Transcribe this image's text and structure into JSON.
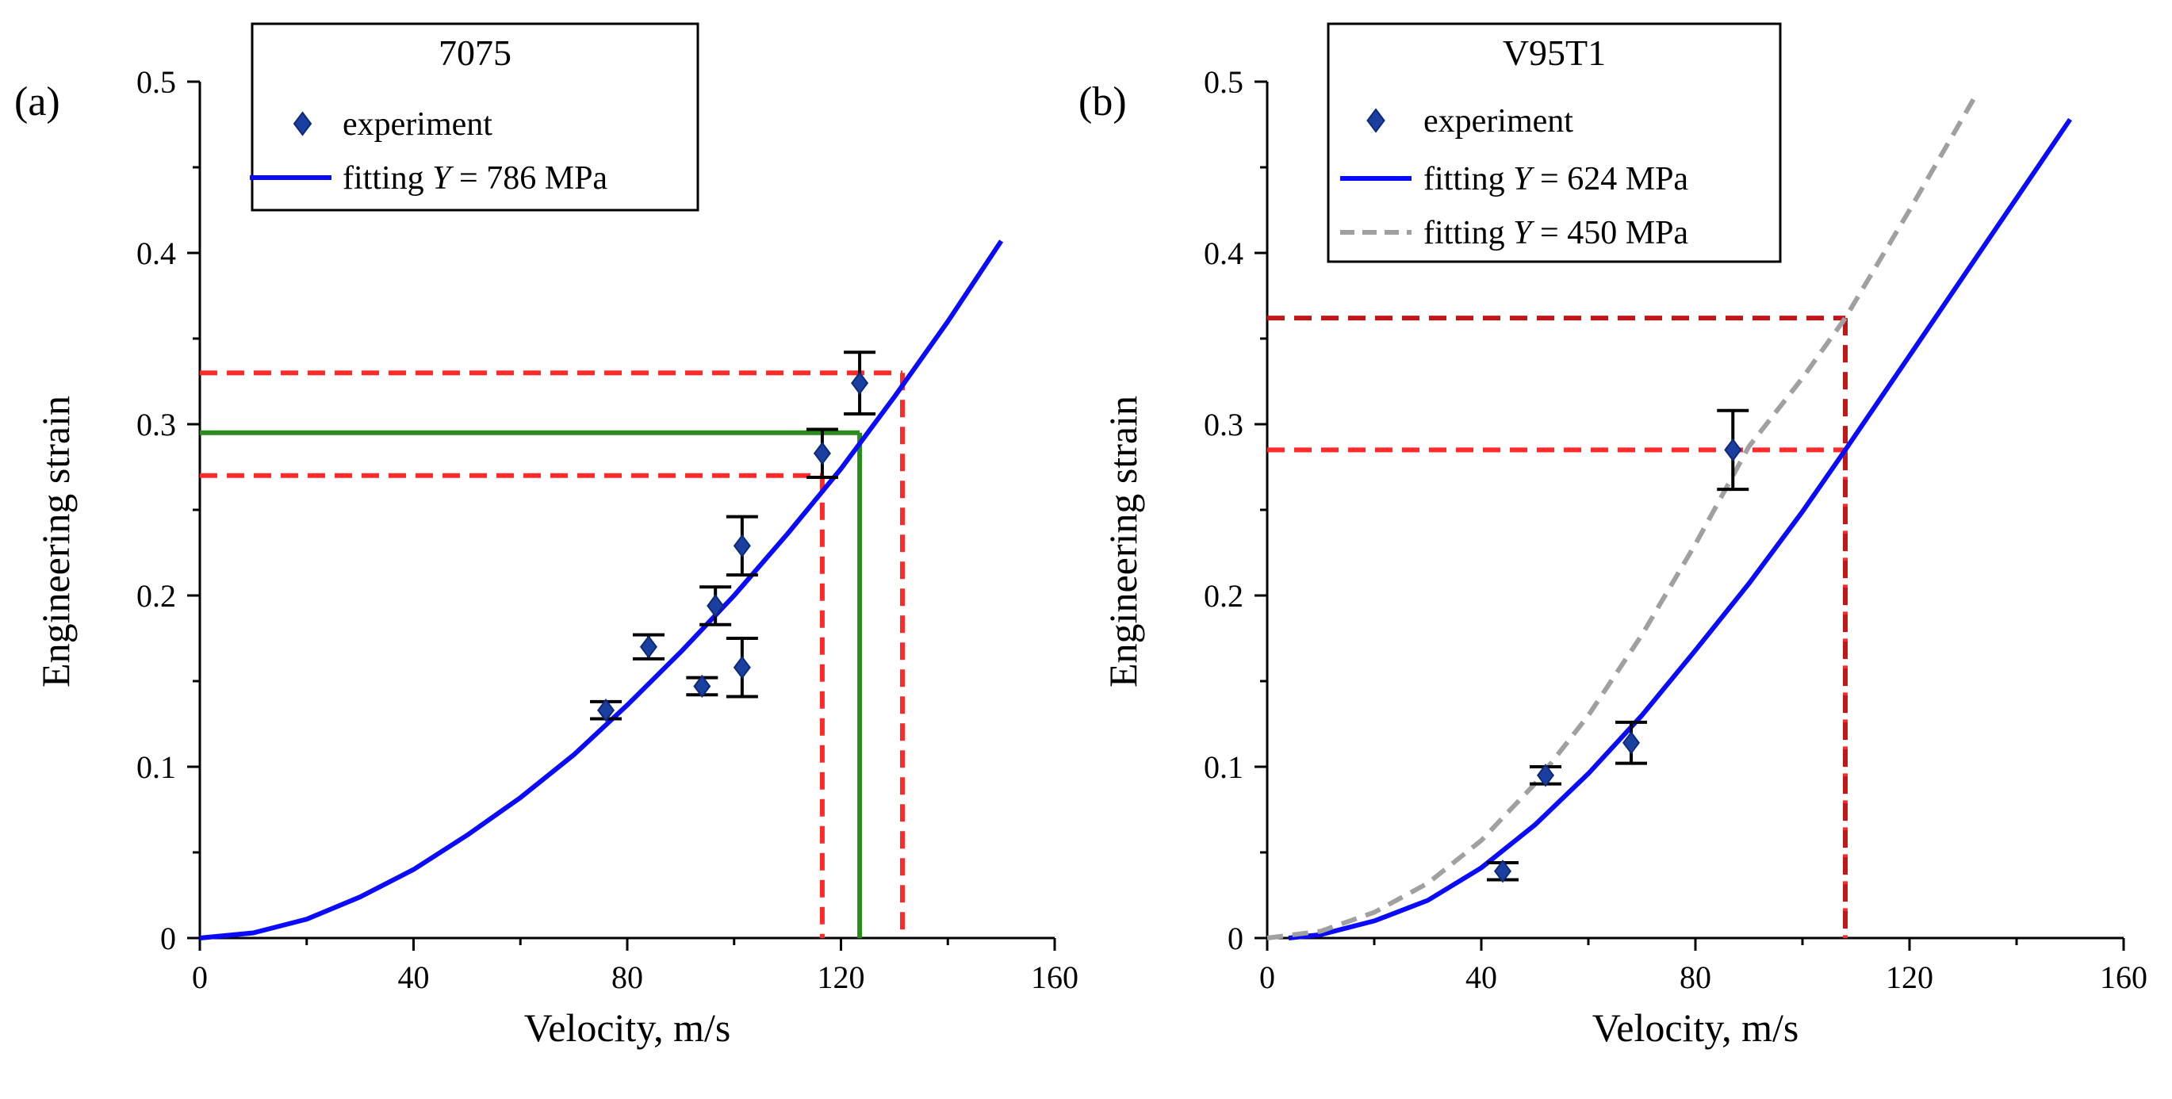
{
  "chart_data": [
    {
      "type": "scatter",
      "panel_label": "(a)",
      "legend_title": "7075",
      "legend": [
        {
          "kind": "marker",
          "text": "experiment"
        },
        {
          "kind": "line",
          "text_pre": "fitting ",
          "text_var": "Y",
          "text_post": " = 786 MPa",
          "color": "#0a0aff"
        }
      ],
      "xlabel": "Velocity, m/s",
      "ylabel": "Engineering strain",
      "xlim": [
        0,
        160
      ],
      "ylim": [
        0,
        0.5
      ],
      "xticks": [
        0,
        40,
        80,
        120,
        160
      ],
      "yticks": [
        0,
        0.1,
        0.2,
        0.3,
        0.4,
        0.5
      ],
      "xtick_labels": [
        "0",
        "40",
        "80",
        "120",
        "160"
      ],
      "ytick_labels": [
        "0",
        "0.1",
        "0.2",
        "0.3",
        "0.4",
        "0.5"
      ],
      "series": [
        {
          "name": "experiment",
          "points": [
            {
              "x": 76,
              "y": 0.133,
              "err": 0.005
            },
            {
              "x": 84,
              "y": 0.17,
              "err": 0.007
            },
            {
              "x": 94,
              "y": 0.147,
              "err": 0.005
            },
            {
              "x": 96.5,
              "y": 0.194,
              "err": 0.011
            },
            {
              "x": 101.5,
              "y": 0.229,
              "err": 0.017
            },
            {
              "x": 101.5,
              "y": 0.158,
              "err": 0.017
            },
            {
              "x": 116.5,
              "y": 0.283,
              "err": 0.014
            },
            {
              "x": 123.5,
              "y": 0.324,
              "err": 0.018
            }
          ]
        },
        {
          "name": "fitting Y = 786 MPa",
          "curve": [
            {
              "x": 0,
              "y": 0
            },
            {
              "x": 10,
              "y": 0.003
            },
            {
              "x": 20,
              "y": 0.011
            },
            {
              "x": 30,
              "y": 0.024
            },
            {
              "x": 40,
              "y": 0.04
            },
            {
              "x": 50,
              "y": 0.06
            },
            {
              "x": 60,
              "y": 0.082
            },
            {
              "x": 70,
              "y": 0.107
            },
            {
              "x": 80,
              "y": 0.136
            },
            {
              "x": 90,
              "y": 0.167
            },
            {
              "x": 100,
              "y": 0.2
            },
            {
              "x": 110,
              "y": 0.236
            },
            {
              "x": 120,
              "y": 0.274
            },
            {
              "x": 130,
              "y": 0.316
            },
            {
              "x": 140,
              "y": 0.36
            },
            {
              "x": 150,
              "y": 0.407
            }
          ]
        }
      ],
      "reference_lines": [
        {
          "color": "#ff2a2a",
          "dashed": true,
          "x": 116.5,
          "y": 0.27
        },
        {
          "color": "#ff2a2a",
          "dashed": true,
          "x": 131.5,
          "y": 0.33
        },
        {
          "color": "#2a8c1a",
          "dashed": false,
          "x": 123.5,
          "y": 0.295
        }
      ]
    },
    {
      "type": "scatter",
      "panel_label": "(b)",
      "legend_title": "V95T1",
      "legend": [
        {
          "kind": "marker",
          "text": "experiment"
        },
        {
          "kind": "line",
          "text_pre": "fitting ",
          "text_var": "Y",
          "text_post": " = 624 MPa",
          "color": "#0a0aff"
        },
        {
          "kind": "dash",
          "text_pre": "fitting ",
          "text_var": "Y",
          "text_post": " = 450 MPa",
          "color": "#a0a0a0"
        }
      ],
      "xlabel": "Velocity, m/s",
      "ylabel": "Engineering strain",
      "xlim": [
        0,
        160
      ],
      "ylim": [
        0,
        0.5
      ],
      "xticks": [
        0,
        40,
        80,
        120,
        160
      ],
      "yticks": [
        0,
        0.1,
        0.2,
        0.3,
        0.4,
        0.5
      ],
      "xtick_labels": [
        "0",
        "40",
        "80",
        "120",
        "160"
      ],
      "ytick_labels": [
        "0",
        "0.1",
        "0.2",
        "0.3",
        "0.4",
        "0.5"
      ],
      "series": [
        {
          "name": "experiment",
          "points": [
            {
              "x": 44,
              "y": 0.039,
              "err": 0.005
            },
            {
              "x": 52,
              "y": 0.095,
              "err": 0.005
            },
            {
              "x": 68,
              "y": 0.114,
              "err": 0.012
            },
            {
              "x": 87,
              "y": 0.285,
              "err": 0.023
            }
          ]
        },
        {
          "name": "fitting Y = 624 MPa",
          "curve": [
            {
              "x": 4,
              "y": 0
            },
            {
              "x": 10,
              "y": 0.002
            },
            {
              "x": 20,
              "y": 0.01
            },
            {
              "x": 30,
              "y": 0.022
            },
            {
              "x": 40,
              "y": 0.041
            },
            {
              "x": 50,
              "y": 0.066
            },
            {
              "x": 60,
              "y": 0.096
            },
            {
              "x": 70,
              "y": 0.13
            },
            {
              "x": 80,
              "y": 0.168
            },
            {
              "x": 90,
              "y": 0.207
            },
            {
              "x": 100,
              "y": 0.249
            },
            {
              "x": 108,
              "y": 0.285
            },
            {
              "x": 120,
              "y": 0.34
            },
            {
              "x": 130,
              "y": 0.386
            },
            {
              "x": 140,
              "y": 0.432
            },
            {
              "x": 150,
              "y": 0.478
            }
          ]
        },
        {
          "name": "fitting Y = 450 MPa",
          "curve": [
            {
              "x": 0,
              "y": 0
            },
            {
              "x": 10,
              "y": 0.004
            },
            {
              "x": 20,
              "y": 0.015
            },
            {
              "x": 30,
              "y": 0.032
            },
            {
              "x": 40,
              "y": 0.057
            },
            {
              "x": 50,
              "y": 0.09
            },
            {
              "x": 60,
              "y": 0.13
            },
            {
              "x": 70,
              "y": 0.177
            },
            {
              "x": 80,
              "y": 0.23
            },
            {
              "x": 90,
              "y": 0.287
            },
            {
              "x": 100,
              "y": 0.327
            },
            {
              "x": 108,
              "y": 0.362
            },
            {
              "x": 120,
              "y": 0.425
            },
            {
              "x": 132,
              "y": 0.49
            }
          ]
        }
      ],
      "reference_lines": [
        {
          "color": "#ff2a2a",
          "dashed": true,
          "x": 108,
          "y": 0.285
        },
        {
          "color": "#c01818",
          "dashed": true,
          "x": 108,
          "y": 0.362
        }
      ]
    }
  ]
}
